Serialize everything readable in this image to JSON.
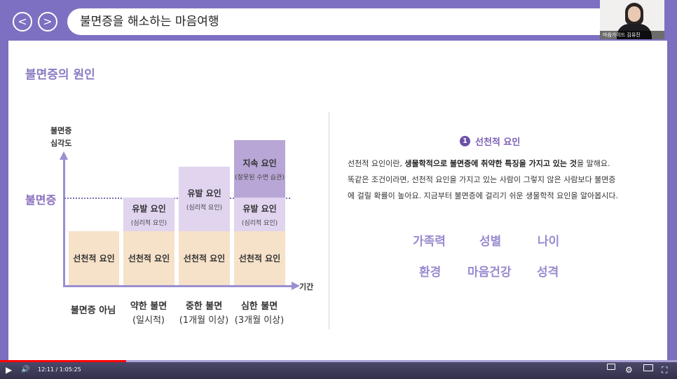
{
  "topbar": {
    "prev_glyph": "<",
    "next_glyph": ">",
    "title": "불면증을 해소하는 마음여행"
  },
  "webcam": {
    "caption": "마음가이드 김유진"
  },
  "slide": {
    "title": "불면증의 원인",
    "chart": {
      "y_label": "불면증\n심각도",
      "x_label": "기간",
      "threshold_label": "불면증",
      "categories": [
        {
          "line1": "불면증 아님",
          "line2": ""
        },
        {
          "line1": "약한 불면",
          "line2": "(일시적)"
        },
        {
          "line1": "중한 불면",
          "line2": "(1개월 이상)"
        },
        {
          "line1": "심한 불면",
          "line2": "(3개월 이상)"
        }
      ],
      "boxes": {
        "base": "선천적 요인",
        "trigger": "유발 요인",
        "trigger_sub": "(심리적 요인)",
        "persist": "지속 요인",
        "persist_sub": "(잘못된 수면 습관)"
      }
    },
    "section": {
      "number": "1",
      "heading": "선천적 요인",
      "para_part1": "선천적 요인이란, ",
      "para_bold": "생물학적으로 불면증에 취약한 특징을 가지고 있는 것",
      "para_part2": "을 말해요.",
      "para_line2": "똑같은 조건이라면, 선천적 요인을 가지고 있는 사람이 그렇지 않은 사람보다 불면증",
      "para_line3": "에 걸릴 확률이 높아요. 지금부터 불면증에 걸리기 쉬운 생물학적 요인을 알아봅시다.",
      "factors": [
        "가족력",
        "성별",
        "나이",
        "환경",
        "마음건강",
        "성격"
      ]
    }
  },
  "player": {
    "time": "12:11 / 1:05:25",
    "progress": 0.186,
    "play_icon": "▶",
    "volume_icon": "🔊",
    "fullscreen_icon": "⛶"
  }
}
